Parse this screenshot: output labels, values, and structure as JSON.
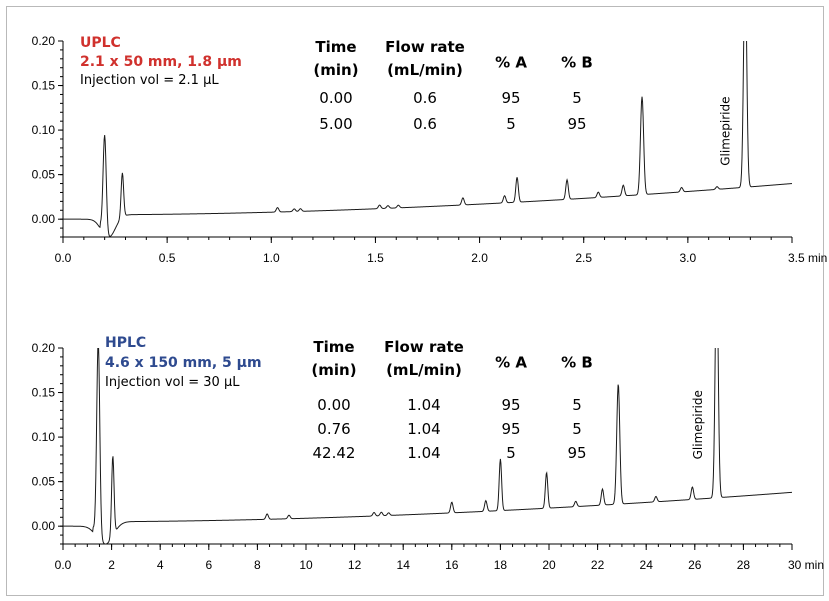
{
  "chart_data": [
    {
      "type": "line",
      "title": "UPLC",
      "subtitle": "2.1 x 50 mm, 1.8 µm",
      "note": "Injection vol = 2.1 µL",
      "title_color": "#d0312d",
      "xlabel": "",
      "ylabel": "",
      "x_unit": "min",
      "xlim": [
        0,
        3.5
      ],
      "ylim": [
        -0.02,
        0.2
      ],
      "xticks": [
        0,
        0.5,
        1.0,
        1.5,
        2.0,
        2.5,
        3.0,
        3.5
      ],
      "xtick_labels": [
        "0.0",
        "0.5",
        "1.0",
        "1.5",
        "2.0",
        "2.5",
        "3.0",
        "3.5 min"
      ],
      "yticks": [
        0,
        0.05,
        0.1,
        0.15,
        0.2
      ],
      "ytick_labels": [
        "0.00",
        "0.05",
        "0.10",
        "0.15",
        "0.20"
      ],
      "grid": false,
      "series": [
        {
          "peaks": [
            {
              "t": 0.2,
              "h": 0.11
            },
            {
              "t": 0.285,
              "h": 0.05
            },
            {
              "t": 1.03,
              "h": 0.005
            },
            {
              "t": 1.11,
              "h": 0.003
            },
            {
              "t": 1.14,
              "h": 0.003
            },
            {
              "t": 1.52,
              "h": 0.004
            },
            {
              "t": 1.56,
              "h": 0.003
            },
            {
              "t": 1.61,
              "h": 0.003
            },
            {
              "t": 1.92,
              "h": 0.008
            },
            {
              "t": 2.12,
              "h": 0.008
            },
            {
              "t": 2.18,
              "h": 0.028
            },
            {
              "t": 2.42,
              "h": 0.022
            },
            {
              "t": 2.57,
              "h": 0.006
            },
            {
              "t": 2.69,
              "h": 0.012
            },
            {
              "t": 2.78,
              "h": 0.11
            },
            {
              "t": 2.97,
              "h": 0.005
            },
            {
              "t": 3.14,
              "h": 0.003
            },
            {
              "t": 3.275,
              "h": 0.25
            }
          ]
        }
      ],
      "annotations": [
        {
          "text": "Glimepiride",
          "x": 3.2,
          "y": 0.06,
          "rotation": -90
        }
      ],
      "gradient_table": {
        "headers": [
          [
            "Time",
            "(min)"
          ],
          [
            "Flow rate",
            "(mL/min)"
          ],
          [
            "% A",
            ""
          ],
          [
            "% B",
            ""
          ]
        ],
        "rows": [
          [
            "0.00",
            "0.6",
            "95",
            "5"
          ],
          [
            "5.00",
            "0.6",
            "5",
            "95"
          ]
        ]
      }
    },
    {
      "type": "line",
      "title": "HPLC",
      "subtitle": "4.6 x 150 mm, 5 µm",
      "note": "Injection vol = 30 µL",
      "title_color": "#2e4a8f",
      "xlabel": "",
      "ylabel": "",
      "x_unit": "min",
      "xlim": [
        0,
        30
      ],
      "ylim": [
        -0.02,
        0.2
      ],
      "xticks": [
        0,
        2,
        4,
        6,
        8,
        10,
        12,
        14,
        16,
        18,
        20,
        22,
        24,
        26,
        28,
        30
      ],
      "xtick_labels": [
        "0.0",
        "2",
        "4",
        "6",
        "8",
        "10",
        "12",
        "14",
        "16",
        "18",
        "20",
        "22",
        "24",
        "26",
        "28",
        "30 min"
      ],
      "yticks": [
        0,
        0.05,
        0.1,
        0.15,
        0.2
      ],
      "ytick_labels": [
        "0.00",
        "0.05",
        "0.10",
        "0.15",
        "0.20"
      ],
      "grid": false,
      "series": [
        {
          "peaks": [
            {
              "t": 1.45,
              "h": 0.22
            },
            {
              "t": 2.05,
              "h": 0.09
            },
            {
              "t": 8.4,
              "h": 0.006
            },
            {
              "t": 9.3,
              "h": 0.004
            },
            {
              "t": 12.8,
              "h": 0.004
            },
            {
              "t": 13.1,
              "h": 0.004
            },
            {
              "t": 13.4,
              "h": 0.003
            },
            {
              "t": 16.0,
              "h": 0.012
            },
            {
              "t": 17.4,
              "h": 0.012
            },
            {
              "t": 18.0,
              "h": 0.058
            },
            {
              "t": 19.9,
              "h": 0.04
            },
            {
              "t": 21.1,
              "h": 0.006
            },
            {
              "t": 22.2,
              "h": 0.018
            },
            {
              "t": 22.85,
              "h": 0.135
            },
            {
              "t": 24.4,
              "h": 0.006
            },
            {
              "t": 25.9,
              "h": 0.014
            },
            {
              "t": 26.9,
              "h": 0.26
            }
          ]
        }
      ],
      "annotations": [
        {
          "text": "Glimepiride",
          "x": 26.3,
          "y": 0.075,
          "rotation": -90
        }
      ],
      "gradient_table": {
        "headers": [
          [
            "Time",
            "(min)"
          ],
          [
            "Flow rate",
            "(mL/min)"
          ],
          [
            "% A",
            ""
          ],
          [
            "% B",
            ""
          ]
        ],
        "rows": [
          [
            "0.00",
            "1.04",
            "95",
            "5"
          ],
          [
            "0.76",
            "1.04",
            "95",
            "5"
          ],
          [
            "42.42",
            "1.04",
            "5",
            "95"
          ]
        ]
      }
    }
  ]
}
